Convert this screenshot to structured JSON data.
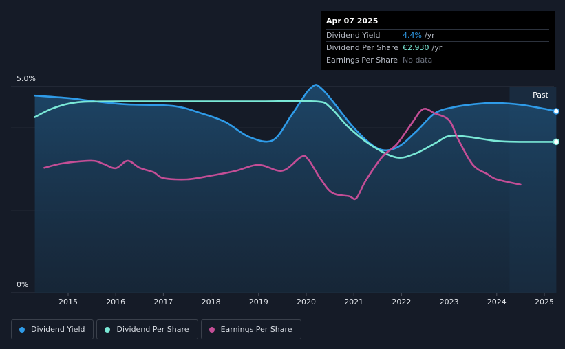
{
  "tooltip": {
    "date": "Apr 07 2025",
    "rows": [
      {
        "label": "Dividend Yield",
        "value": "4.4%",
        "unit": "/yr",
        "color": "#2f9be8"
      },
      {
        "label": "Dividend Per Share",
        "value": "€2.930",
        "unit": "/yr",
        "color": "#7ae8d6"
      },
      {
        "label": "Earnings Per Share",
        "value": "No data",
        "unit": "",
        "color": "#6d7380"
      }
    ]
  },
  "legend": [
    {
      "label": "Dividend Yield",
      "color": "#2f9be8"
    },
    {
      "label": "Dividend Per Share",
      "color": "#7ae8d6"
    },
    {
      "label": "Earnings Per Share",
      "color": "#c44e96"
    }
  ],
  "chart_data": {
    "type": "line",
    "y_axis": {
      "top_label": "5.0%",
      "bottom_label": "0%",
      "ylim": [
        0,
        5
      ]
    },
    "x_axis": {
      "ticks": [
        "2015",
        "2016",
        "2017",
        "2018",
        "2019",
        "2020",
        "2021",
        "2022",
        "2023",
        "2024",
        "2025"
      ],
      "xlim": [
        2014.3,
        2025.25
      ]
    },
    "past_label": "Past",
    "past_region_start": 2024.27,
    "series": [
      {
        "name": "Dividend Yield",
        "color": "#2f9be8",
        "filled": true,
        "end_marker": true,
        "points": [
          [
            2014.3,
            4.78
          ],
          [
            2015.0,
            4.72
          ],
          [
            2015.5,
            4.65
          ],
          [
            2016.2,
            4.57
          ],
          [
            2017.2,
            4.53
          ],
          [
            2017.8,
            4.35
          ],
          [
            2018.3,
            4.14
          ],
          [
            2018.8,
            3.78
          ],
          [
            2019.3,
            3.7
          ],
          [
            2019.7,
            4.32
          ],
          [
            2020.1,
            4.97
          ],
          [
            2020.35,
            4.92
          ],
          [
            2021.0,
            4.0
          ],
          [
            2021.5,
            3.5
          ],
          [
            2021.9,
            3.52
          ],
          [
            2022.3,
            3.9
          ],
          [
            2022.7,
            4.35
          ],
          [
            2023.1,
            4.5
          ],
          [
            2023.6,
            4.58
          ],
          [
            2024.0,
            4.6
          ],
          [
            2024.5,
            4.56
          ],
          [
            2025.0,
            4.46
          ],
          [
            2025.25,
            4.4
          ]
        ]
      },
      {
        "name": "Dividend Per Share",
        "color": "#7ae8d6",
        "filled": false,
        "end_marker": true,
        "points": [
          [
            2014.3,
            4.26
          ],
          [
            2014.7,
            4.48
          ],
          [
            2015.2,
            4.62
          ],
          [
            2016.0,
            4.64
          ],
          [
            2017.0,
            4.64
          ],
          [
            2018.0,
            4.64
          ],
          [
            2019.0,
            4.64
          ],
          [
            2020.2,
            4.64
          ],
          [
            2020.5,
            4.5
          ],
          [
            2020.9,
            4.0
          ],
          [
            2021.4,
            3.55
          ],
          [
            2021.9,
            3.28
          ],
          [
            2022.3,
            3.38
          ],
          [
            2022.7,
            3.62
          ],
          [
            2023.0,
            3.8
          ],
          [
            2023.4,
            3.78
          ],
          [
            2024.0,
            3.68
          ],
          [
            2024.5,
            3.66
          ],
          [
            2025.25,
            3.66
          ]
        ]
      },
      {
        "name": "Earnings Per Share",
        "color": "#c44e96",
        "filled": false,
        "end_marker": false,
        "points": [
          [
            2014.5,
            3.03
          ],
          [
            2014.9,
            3.14
          ],
          [
            2015.5,
            3.2
          ],
          [
            2015.75,
            3.12
          ],
          [
            2016.0,
            3.02
          ],
          [
            2016.25,
            3.2
          ],
          [
            2016.5,
            3.03
          ],
          [
            2016.8,
            2.92
          ],
          [
            2017.0,
            2.78
          ],
          [
            2017.5,
            2.75
          ],
          [
            2018.0,
            2.84
          ],
          [
            2018.5,
            2.95
          ],
          [
            2019.0,
            3.1
          ],
          [
            2019.5,
            2.96
          ],
          [
            2019.9,
            3.3
          ],
          [
            2020.05,
            3.22
          ],
          [
            2020.3,
            2.76
          ],
          [
            2020.55,
            2.42
          ],
          [
            2020.9,
            2.34
          ],
          [
            2021.05,
            2.29
          ],
          [
            2021.25,
            2.72
          ],
          [
            2021.6,
            3.3
          ],
          [
            2021.9,
            3.6
          ],
          [
            2022.2,
            4.08
          ],
          [
            2022.45,
            4.45
          ],
          [
            2022.7,
            4.35
          ],
          [
            2023.0,
            4.18
          ],
          [
            2023.2,
            3.7
          ],
          [
            2023.5,
            3.1
          ],
          [
            2023.8,
            2.88
          ],
          [
            2024.0,
            2.75
          ],
          [
            2024.5,
            2.62
          ]
        ]
      }
    ]
  }
}
